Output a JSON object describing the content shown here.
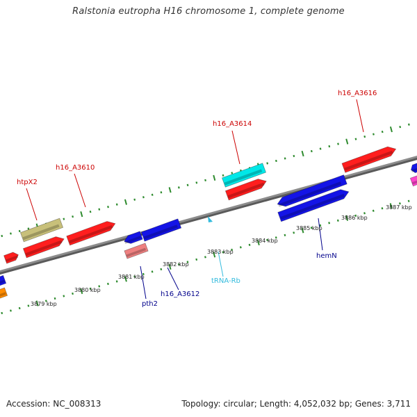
{
  "title": "Ralstonia eutropha H16 chromosome 1, complete genome",
  "footer": {
    "accession": "Accession: NC_008313",
    "topology": "Topology: circular; Length: 4,052,032 bp; Genes: 3,711"
  },
  "colors": {
    "backbone": "#8c8c8c",
    "tick": "#2e8b2e",
    "red": "#ff1e1e",
    "blue": "#1414e6",
    "cyan": "#00e8e8",
    "olive": "#c8c07a",
    "pink": "#ee8080",
    "orange": "#ff8c00",
    "magenta": "#ff44cc",
    "red_label": "#cc0000",
    "blue_label": "#00008b",
    "cyan_label": "#33bbdd"
  },
  "scale_labels": [
    "3879 kbp",
    "3880 kbp",
    "3881 kbp",
    "3882 kbp",
    "3883 kbp",
    "3884 kbp",
    "3885 kbp",
    "3886 kbp",
    "3887 kbp"
  ],
  "gene_labels": [
    {
      "id": "htpX2",
      "text": "htpX2",
      "color": "red_label"
    },
    {
      "id": "h16_A3610",
      "text": "h16_A3610",
      "color": "red_label"
    },
    {
      "id": "h16_A3614",
      "text": "h16_A3614",
      "color": "red_label"
    },
    {
      "id": "h16_A3616",
      "text": "h16_A3616",
      "color": "red_label"
    },
    {
      "id": "pth2",
      "text": "pth2",
      "color": "blue_label"
    },
    {
      "id": "h16_A3612",
      "text": "h16_A3612",
      "color": "blue_label"
    },
    {
      "id": "tRNA-Rb",
      "text": "tRNA-Rb",
      "color": "cyan_label"
    },
    {
      "id": "hemN",
      "text": "hemN",
      "color": "blue_label"
    }
  ]
}
